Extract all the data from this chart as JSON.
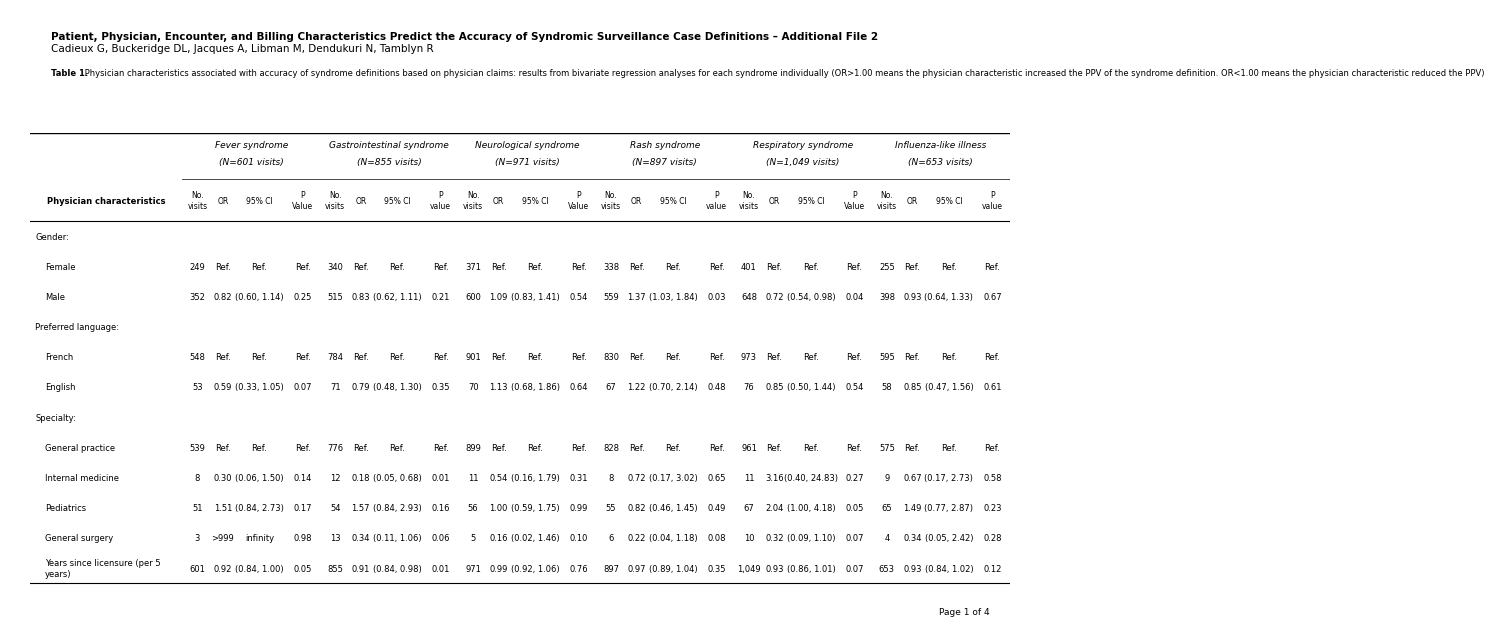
{
  "title_bold": "Patient, Physician, Encounter, and Billing Characteristics Predict the Accuracy of Syndromic Surveillance Case Definitions – Additional File 2",
  "title_normal": "Cadieux G, Buckeridge DL, Jacques A, Libman M, Dendukuri N, Tamblyn R",
  "table_caption": "Table 1. Physician characteristics associated with accuracy of syndrome definitions based on physician claims: results from bivariate regression analyses for each syndrome individually (OR>1.00 means the physician characteristic increased the PPV of the syndrome definition. OR<1.00 means the physician characteristic reduced the PPV)",
  "page_note": "Page 1 of 4",
  "syndromes": [
    {
      "name": "Fever syndrome",
      "visits": "N=601 visits"
    },
    {
      "name": "Gastrointestinal syndrome",
      "visits": "N=855 visits"
    },
    {
      "name": "Neurological syndrome",
      "visits": "N=971 visits"
    },
    {
      "name": "Rash syndrome",
      "visits": "N=897 visits"
    },
    {
      "name": "Respiratory syndrome",
      "visits": "N=1,049 visits"
    },
    {
      "name": "Influenza-like illness",
      "visits": "N=653 visits"
    }
  ],
  "col_headers": [
    "No.\nvisits",
    "OR",
    "95% CI",
    "P\nValue",
    "No.\nvisits",
    "OR",
    "95% CI",
    "P\nvalue",
    "No.\nvisits",
    "OR",
    "95% CI",
    "P\nValue",
    "No.\nvisits",
    "OR",
    "95% CI",
    "P\nvalue",
    "No.\nvisits",
    "OR",
    "95% CI",
    "P\nValue",
    "No.\nvisits",
    "OR",
    "95% CI",
    "P\nvalue"
  ],
  "row_header": "Physician characteristics",
  "rows": [
    {
      "label": "Gender:",
      "data": [
        "",
        "",
        "",
        "",
        "",
        "",
        "",
        "",
        "",
        "",
        "",
        "",
        "",
        "",
        "",
        "",
        "",
        "",
        "",
        "",
        "",
        "",
        "",
        ""
      ],
      "is_section": true
    },
    {
      "label": "Female",
      "data": [
        "249",
        "Ref.",
        "Ref.",
        "Ref.",
        "340",
        "Ref.",
        "Ref.",
        "Ref.",
        "371",
        "Ref.",
        "Ref.",
        "Ref.",
        "338",
        "Ref.",
        "Ref.",
        "Ref.",
        "401",
        "Ref.",
        "Ref.",
        "Ref.",
        "255",
        "Ref.",
        "Ref.",
        "Ref."
      ],
      "is_section": false
    },
    {
      "label": "Male",
      "data": [
        "352",
        "0.82",
        "(0.60, 1.14)",
        "0.25",
        "515",
        "0.83",
        "(0.62, 1.11)",
        "0.21",
        "600",
        "1.09",
        "(0.83, 1.41)",
        "0.54",
        "559",
        "1.37",
        "(1.03, 1.84)",
        "0.03",
        "648",
        "0.72",
        "(0.54, 0.98)",
        "0.04",
        "398",
        "0.93",
        "(0.64, 1.33)",
        "0.67"
      ],
      "is_section": false
    },
    {
      "label": "Preferred language:",
      "data": [
        "",
        "",
        "",
        "",
        "",
        "",
        "",
        "",
        "",
        "",
        "",
        "",
        "",
        "",
        "",
        "",
        "",
        "",
        "",
        "",
        "",
        "",
        "",
        ""
      ],
      "is_section": true
    },
    {
      "label": "French",
      "data": [
        "548",
        "Ref.",
        "Ref.",
        "Ref.",
        "784",
        "Ref.",
        "Ref.",
        "Ref.",
        "901",
        "Ref.",
        "Ref.",
        "Ref.",
        "830",
        "Ref.",
        "Ref.",
        "Ref.",
        "973",
        "Ref.",
        "Ref.",
        "Ref.",
        "595",
        "Ref.",
        "Ref.",
        "Ref."
      ],
      "is_section": false
    },
    {
      "label": "English",
      "data": [
        "53",
        "0.59",
        "(0.33, 1.05)",
        "0.07",
        "71",
        "0.79",
        "(0.48, 1.30)",
        "0.35",
        "70",
        "1.13",
        "(0.68, 1.86)",
        "0.64",
        "67",
        "1.22",
        "(0.70, 2.14)",
        "0.48",
        "76",
        "0.85",
        "(0.50, 1.44)",
        "0.54",
        "58",
        "0.85",
        "(0.47, 1.56)",
        "0.61"
      ],
      "is_section": false
    },
    {
      "label": "Specialty:",
      "data": [
        "",
        "",
        "",
        "",
        "",
        "",
        "",
        "",
        "",
        "",
        "",
        "",
        "",
        "",
        "",
        "",
        "",
        "",
        "",
        "",
        "",
        "",
        "",
        ""
      ],
      "is_section": true
    },
    {
      "label": "General practice",
      "data": [
        "539",
        "Ref.",
        "Ref.",
        "Ref.",
        "776",
        "Ref.",
        "Ref.",
        "Ref.",
        "899",
        "Ref.",
        "Ref.",
        "Ref.",
        "828",
        "Ref.",
        "Ref.",
        "Ref.",
        "961",
        "Ref.",
        "Ref.",
        "Ref.",
        "575",
        "Ref.",
        "Ref.",
        "Ref."
      ],
      "is_section": false
    },
    {
      "label": "Internal medicine",
      "data": [
        "8",
        "0.30",
        "(0.06, 1.50)",
        "0.14",
        "12",
        "0.18",
        "(0.05, 0.68)",
        "0.01",
        "11",
        "0.54",
        "(0.16, 1.79)",
        "0.31",
        "8",
        "0.72",
        "(0.17, 3.02)",
        "0.65",
        "11",
        "3.16",
        "(0.40, 24.83)",
        "0.27",
        "9",
        "0.67",
        "(0.17, 2.73)",
        "0.58"
      ],
      "is_section": false
    },
    {
      "label": "Pediatrics",
      "data": [
        "51",
        "1.51",
        "(0.84, 2.73)",
        "0.17",
        "54",
        "1.57",
        "(0.84, 2.93)",
        "0.16",
        "56",
        "1.00",
        "(0.59, 1.75)",
        "0.99",
        "55",
        "0.82",
        "(0.46, 1.45)",
        "0.49",
        "67",
        "2.04",
        "(1.00, 4.18)",
        "0.05",
        "65",
        "1.49",
        "(0.77, 2.87)",
        "0.23"
      ],
      "is_section": false
    },
    {
      "label": "General surgery",
      "data": [
        "3",
        ">999",
        "infinity",
        "0.98",
        "13",
        "0.34",
        "(0.11, 1.06)",
        "0.06",
        "5",
        "0.16",
        "(0.02, 1.46)",
        "0.10",
        "6",
        "0.22",
        "(0.04, 1.18)",
        "0.08",
        "10",
        "0.32",
        "(0.09, 1.10)",
        "0.07",
        "4",
        "0.34",
        "(0.05, 2.42)",
        "0.28"
      ],
      "is_section": false
    },
    {
      "label": "Years since licensure (per 5\nyears)",
      "data": [
        "601",
        "0.92",
        "(0.84, 1.00)",
        "0.05",
        "855",
        "0.91",
        "(0.84, 0.98)",
        "0.01",
        "971",
        "0.99",
        "(0.92, 1.06)",
        "0.76",
        "897",
        "0.97",
        "(0.89, 1.04)",
        "0.35",
        "1,049",
        "0.93",
        "(0.86, 1.01)",
        "0.07",
        "653",
        "0.93",
        "(0.84, 1.02)",
        "0.12"
      ],
      "is_section": false
    }
  ]
}
